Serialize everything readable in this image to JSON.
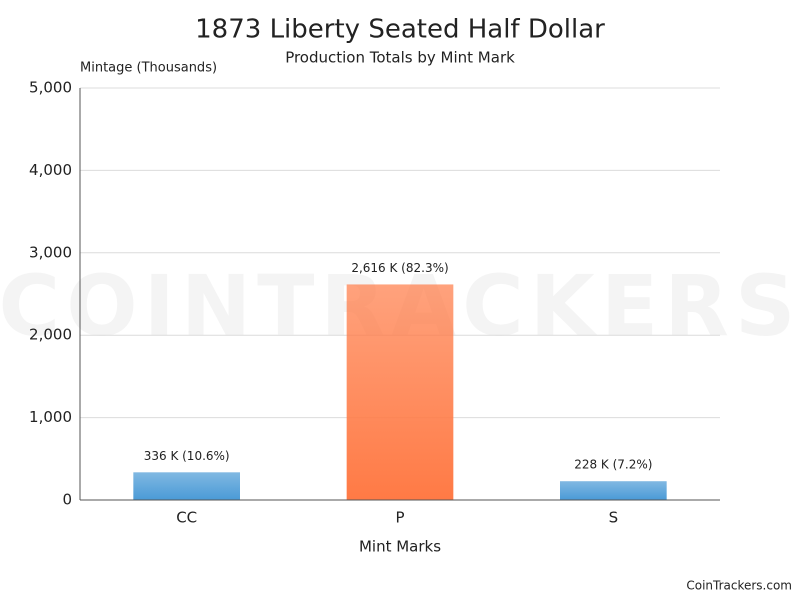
{
  "chart_data": {
    "type": "bar",
    "title": "1873 Liberty Seated Half Dollar",
    "subtitle": "Production Totals by Mint Mark",
    "y_label": "Mintage (Thousands)",
    "x_label": "Mint Marks",
    "categories": [
      "CC",
      "P",
      "S"
    ],
    "values": [
      336,
      2616,
      228
    ],
    "value_labels": [
      "336 K (10.6%)",
      "2,616 K (82.3%)",
      "228 K (7.2%)"
    ],
    "colors": [
      "#4a9ad6",
      "#ff7a45",
      "#4a9ad6"
    ],
    "ylim": [
      0,
      5000
    ],
    "yticks": [
      0,
      {
        "value": 1000,
        "label": "1,000"
      },
      {
        "value": 2000,
        "label": "2,000"
      },
      {
        "value": 3000,
        "label": "3,000"
      },
      {
        "value": 4000,
        "label": "4,000"
      },
      {
        "value": 5000,
        "label": "5,000"
      }
    ],
    "grid": true,
    "watermark": "COINTRACKERS",
    "credit": "CoinTrackers.com"
  }
}
